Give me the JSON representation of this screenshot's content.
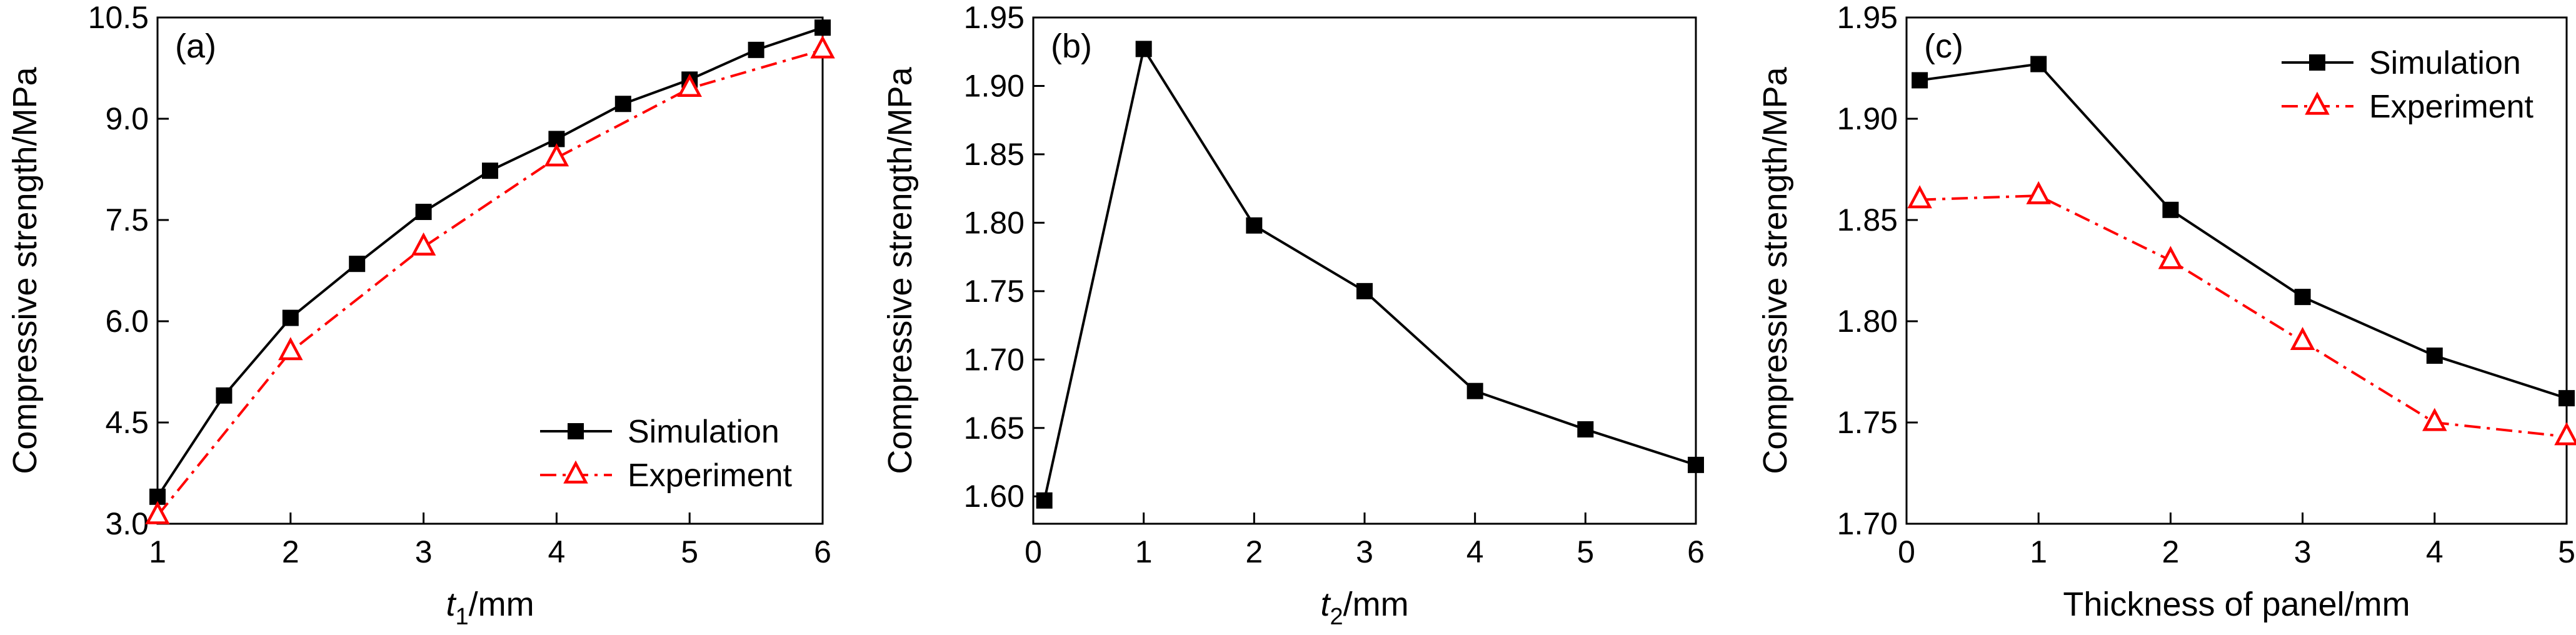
{
  "chart_data": [
    {
      "type": "line",
      "panel_label": "(a)",
      "xlabel_main": "t",
      "xlabel_sub": "1",
      "xlabel_unit": "/mm",
      "ylabel": "Compressive strength/MPa",
      "xlim": [
        1,
        6
      ],
      "ylim": [
        3.0,
        10.5
      ],
      "xticks": [
        "1",
        "2",
        "3",
        "4",
        "5",
        "6"
      ],
      "yticks": [
        "3.0",
        "4.5",
        "6.0",
        "7.5",
        "9.0",
        "10.5"
      ],
      "legend_position": "bottom-right",
      "series": [
        {
          "name": "Simulation",
          "color": "#000000",
          "line_style": "solid",
          "marker": "filled-square",
          "x": [
            1,
            1.5,
            2,
            2.5,
            3,
            3.5,
            4,
            4.5,
            5,
            5.5,
            6
          ],
          "y": [
            3.4,
            4.9,
            6.05,
            6.85,
            7.62,
            8.23,
            8.7,
            9.22,
            9.58,
            10.02,
            10.35
          ]
        },
        {
          "name": "Experiment",
          "color": "#ff0000",
          "line_style": "dash-dot",
          "marker": "open-triangle",
          "x": [
            1,
            2,
            3,
            4,
            5,
            6
          ],
          "y": [
            3.12,
            5.55,
            7.1,
            8.42,
            9.45,
            10.02
          ]
        }
      ]
    },
    {
      "type": "line",
      "panel_label": "(b)",
      "xlabel_main": "t",
      "xlabel_sub": "2",
      "xlabel_unit": "/mm",
      "ylabel": "Compressive strength/MPa",
      "xlim": [
        0,
        6
      ],
      "ylim": [
        1.58,
        1.95
      ],
      "xticks": [
        "0",
        "1",
        "2",
        "3",
        "4",
        "5",
        "6"
      ],
      "yticks": [
        "1.60",
        "1.65",
        "1.70",
        "1.75",
        "1.80",
        "1.85",
        "1.90",
        "1.95"
      ],
      "series": [
        {
          "color": "#000000",
          "line_style": "solid",
          "marker": "filled-square",
          "x": [
            0.1,
            1,
            2,
            3,
            4,
            5,
            6
          ],
          "y": [
            1.597,
            1.927,
            1.798,
            1.75,
            1.677,
            1.649,
            1.623
          ]
        }
      ]
    },
    {
      "type": "line",
      "panel_label": "(c)",
      "xlabel": "Thickness of panel/mm",
      "ylabel": "Compressive strength/MPa",
      "xlim": [
        0,
        5
      ],
      "ylim": [
        1.7,
        1.95
      ],
      "xticks": [
        "0",
        "1",
        "2",
        "3",
        "4",
        "5"
      ],
      "yticks": [
        "1.70",
        "1.75",
        "1.80",
        "1.85",
        "1.90",
        "1.95"
      ],
      "legend_position": "top-right",
      "series": [
        {
          "name": "Simulation",
          "color": "#000000",
          "line_style": "solid",
          "marker": "filled-square",
          "x": [
            0.1,
            1,
            2,
            3,
            4,
            5
          ],
          "y": [
            1.919,
            1.927,
            1.855,
            1.812,
            1.783,
            1.762
          ]
        },
        {
          "name": "Experiment",
          "color": "#ff0000",
          "line_style": "dash-dot",
          "marker": "open-triangle",
          "x": [
            0.1,
            1,
            2,
            3,
            4,
            5
          ],
          "y": [
            1.86,
            1.862,
            1.83,
            1.79,
            1.75,
            1.743
          ]
        }
      ]
    }
  ]
}
